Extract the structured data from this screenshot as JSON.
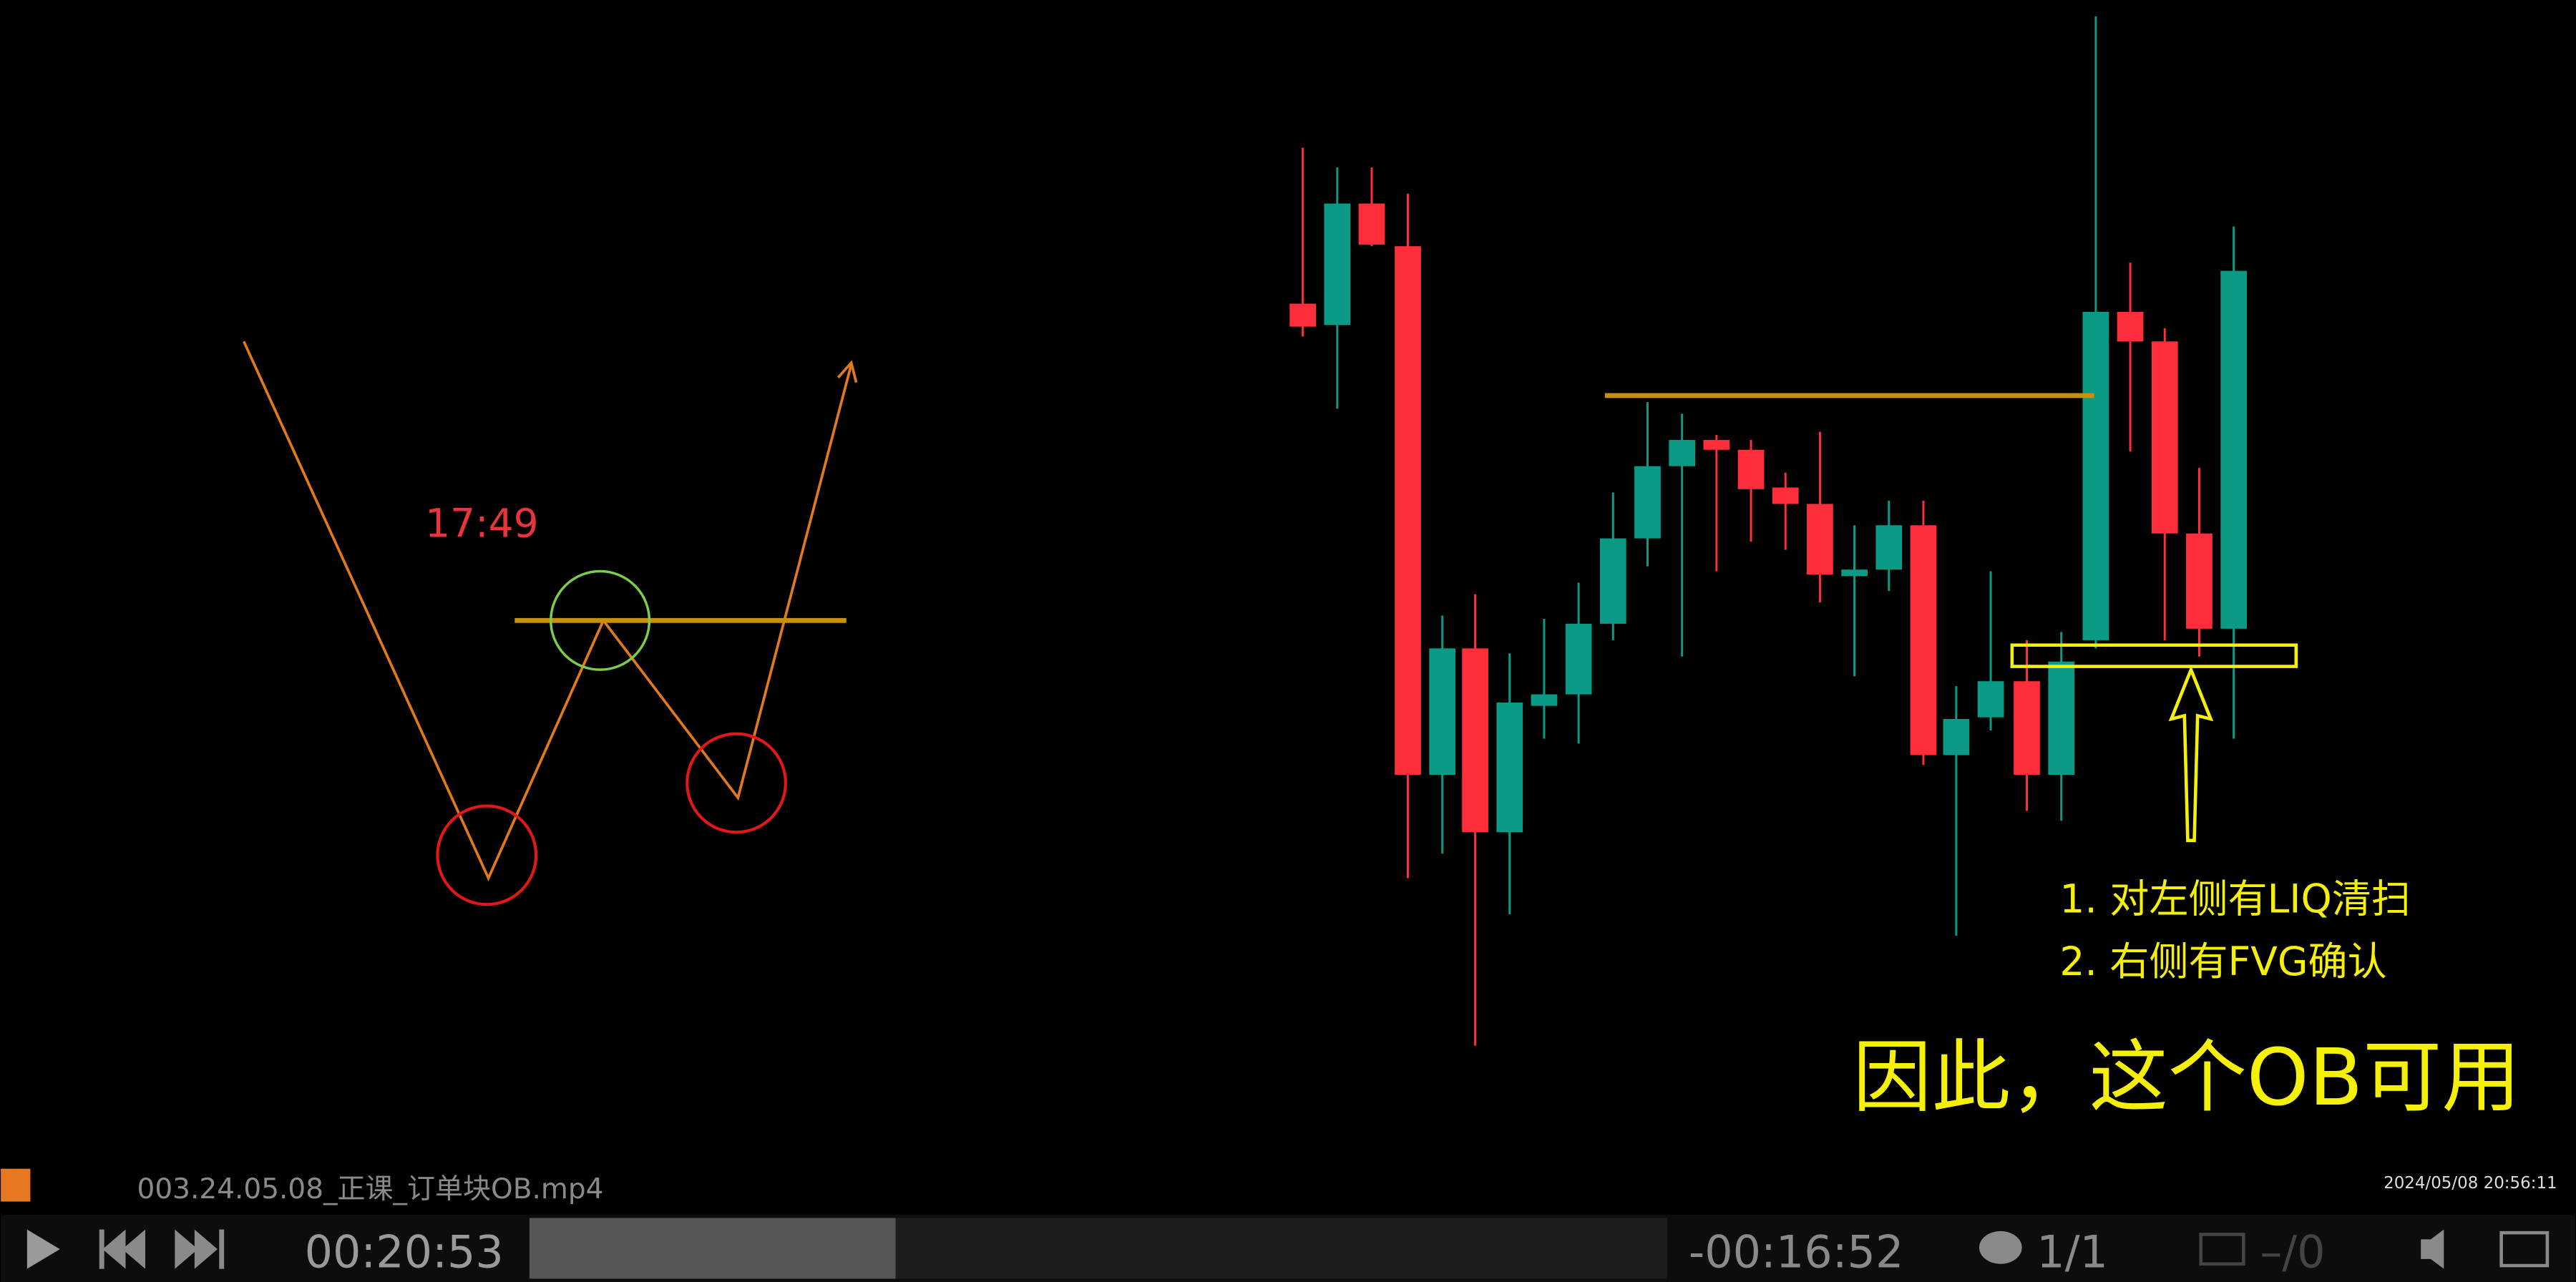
{
  "overlay": {
    "timer": "17:49"
  },
  "annotations": {
    "line1": "1. 对左侧有LIQ清扫",
    "line2": "2. 右侧有FVG确认",
    "conclusion": "因此，这个OB可用"
  },
  "player": {
    "filename": "003.24.05.08_正课_订单块OB.mp4",
    "timestamp": "2024/05/08 20:56:11",
    "elapsed": "00:20:53",
    "remaining": "-00:16:52",
    "comments": "1/1",
    "subtitles": "–/0"
  }
}
